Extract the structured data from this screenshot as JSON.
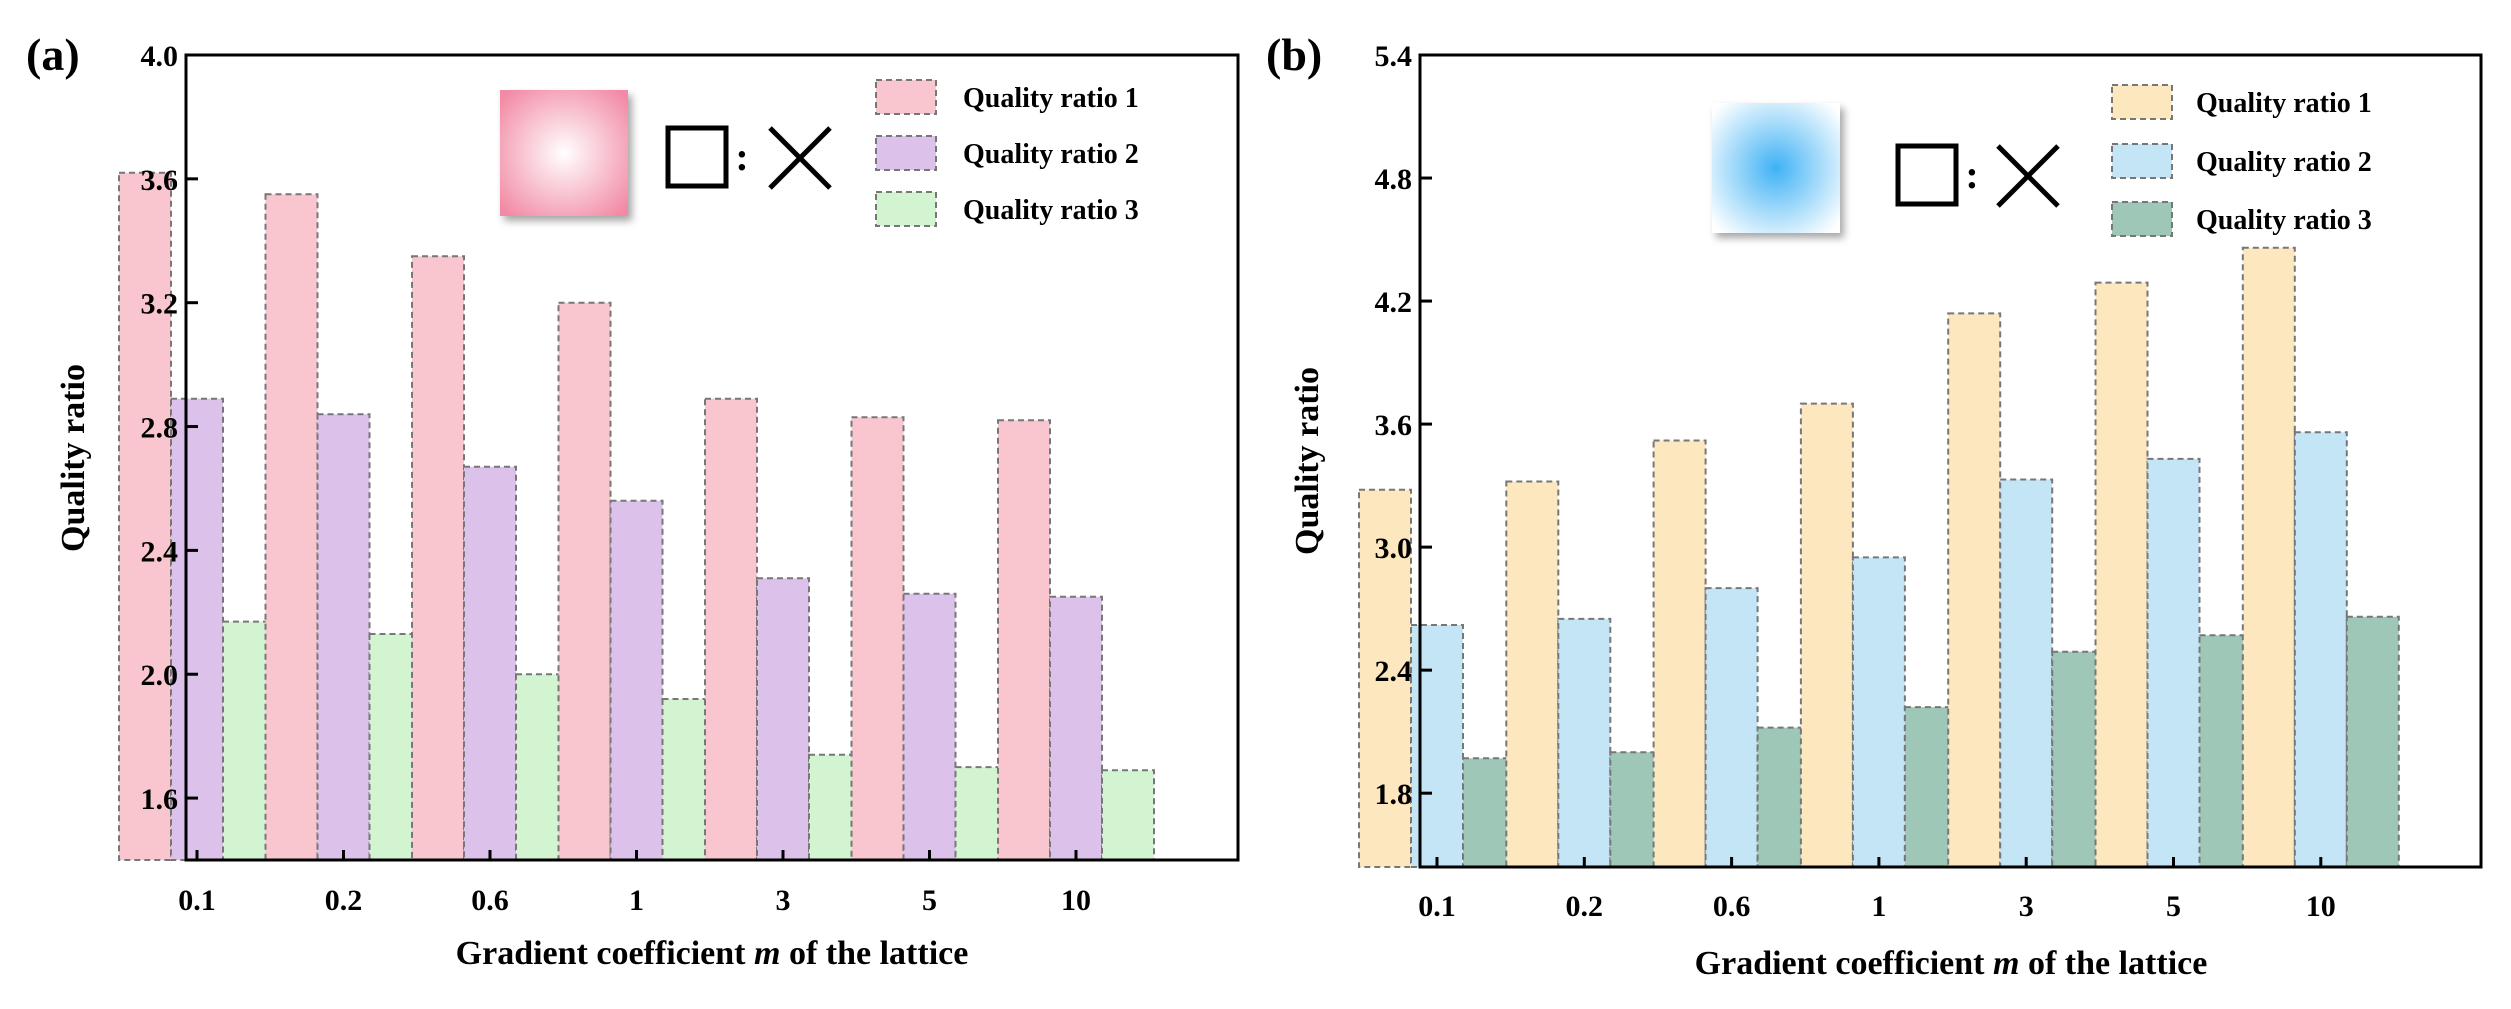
{
  "chart_data": [
    {
      "type": "bar",
      "panel_label": "(a)",
      "categories": [
        "0.1",
        "0.2",
        "0.6",
        "1",
        "3",
        "5",
        "10"
      ],
      "series": [
        {
          "name": "Quality ratio 1",
          "values": [
            3.62,
            3.55,
            3.35,
            3.2,
            2.89,
            2.83,
            2.82
          ],
          "color": "#f9c6cf"
        },
        {
          "name": "Quality ratio 2",
          "values": [
            2.89,
            2.84,
            2.67,
            2.56,
            2.31,
            2.26,
            2.25
          ],
          "color": "#dcc1ea"
        },
        {
          "name": "Quality ratio 3",
          "values": [
            2.17,
            2.13,
            2.0,
            1.92,
            1.74,
            1.7,
            1.69
          ],
          "color": "#d3f4d1"
        }
      ],
      "xlabel_parts": [
        "Gradient coefficient ",
        "m",
        " of the lattice"
      ],
      "ylabel": "Quality ratio",
      "ylim": [
        1.4,
        4.0
      ],
      "yticks": [
        "1.6",
        "2.0",
        "2.4",
        "2.8",
        "3.2",
        "3.6",
        "4.0"
      ],
      "legend_position": "top-right",
      "inset": {
        "swatch_color": "#f28aa5",
        "ratio_symbol": ":"
      }
    },
    {
      "type": "bar",
      "panel_label": "(b)",
      "categories": [
        "0.1",
        "0.2",
        "0.6",
        "1",
        "3",
        "5",
        "10"
      ],
      "series": [
        {
          "name": "Quality ratio 1",
          "values": [
            3.28,
            3.32,
            3.52,
            3.7,
            4.14,
            4.29,
            4.46
          ],
          "color": "#fde7bf"
        },
        {
          "name": "Quality ratio 2",
          "values": [
            2.62,
            2.65,
            2.8,
            2.95,
            3.33,
            3.43,
            3.56
          ],
          "color": "#c3e5f6"
        },
        {
          "name": "Quality ratio 3",
          "values": [
            1.97,
            2.0,
            2.12,
            2.22,
            2.49,
            2.57,
            2.66
          ],
          "color": "#9ec7b8"
        }
      ],
      "xlabel_parts": [
        "Gradient coefficient ",
        "m",
        " of the lattice"
      ],
      "ylabel": "Quality ratio",
      "ylim": [
        1.44,
        5.4
      ],
      "yticks": [
        "1.8",
        "2.4",
        "3.0",
        "3.6",
        "4.2",
        "4.8",
        "5.4"
      ],
      "legend_position": "top-right",
      "inset": {
        "swatch_color": "#5bbcf2",
        "ratio_symbol": ":"
      }
    }
  ]
}
